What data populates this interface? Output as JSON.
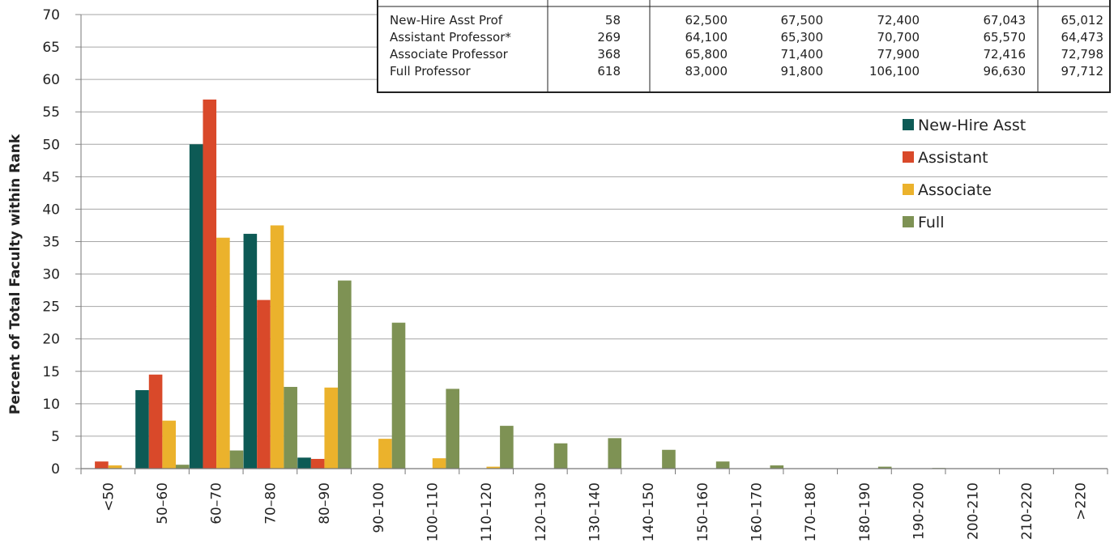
{
  "chart_data": {
    "type": "bar",
    "ylabel": "Percent of Total Faculty within Rank",
    "xlabel": "",
    "ylim": [
      0,
      70
    ],
    "yticks": [
      "0",
      "5",
      "10",
      "15",
      "20",
      "25",
      "30",
      "35",
      "40",
      "45",
      "50",
      "55",
      "60",
      "65",
      "70"
    ],
    "grid": true,
    "legend_position": "right",
    "categories": [
      "<50",
      "50–60",
      "60–70",
      "70–80",
      "80–90",
      "90–100",
      "100–110",
      "110–120",
      "120–130",
      "130–140",
      "140–150",
      "150–160",
      "160–170",
      "170–180",
      "180–190",
      "190-200",
      "200-210",
      "210-220",
      ">220"
    ],
    "series": [
      {
        "name": "New-Hire Asst",
        "color": "#0d5a55",
        "values": [
          0,
          12.1,
          50,
          36.2,
          1.7,
          0,
          0,
          0,
          0,
          0,
          0,
          0,
          0,
          0,
          0,
          0,
          0,
          0,
          0
        ]
      },
      {
        "name": "Assistant",
        "color": "#d9492a",
        "values": [
          1.1,
          14.5,
          56.9,
          26,
          1.5,
          0,
          0,
          0,
          0,
          0,
          0,
          0,
          0,
          0,
          0,
          0,
          0,
          0,
          0
        ]
      },
      {
        "name": "Associate",
        "color": "#ebb22c",
        "values": [
          0.5,
          7.4,
          35.6,
          37.5,
          12.5,
          4.6,
          1.6,
          0.3,
          0,
          0,
          0,
          0,
          0,
          0,
          0,
          0,
          0,
          0,
          0
        ]
      },
      {
        "name": "Full",
        "color": "#7e9254",
        "values": [
          0,
          0.6,
          2.8,
          12.6,
          29,
          22.5,
          12.3,
          6.6,
          3.9,
          4.7,
          2.9,
          1.1,
          0.5,
          0,
          0.3,
          0.1,
          0,
          0,
          0
        ]
      }
    ]
  },
  "summary_table": {
    "rows": [
      [
        "New-Hire Asst Prof",
        "58",
        "62,500",
        "67,500",
        "72,400",
        "67,043",
        "65,012"
      ],
      [
        "Assistant Professor*",
        "269",
        "64,100",
        "65,300",
        "70,700",
        "65,570",
        "64,473"
      ],
      [
        "Associate Professor",
        "368",
        "65,800",
        "71,400",
        "77,900",
        "72,416",
        "72,798"
      ],
      [
        "Full Professor",
        "618",
        "83,000",
        "91,800",
        "106,100",
        "96,630",
        "97,712"
      ]
    ]
  }
}
